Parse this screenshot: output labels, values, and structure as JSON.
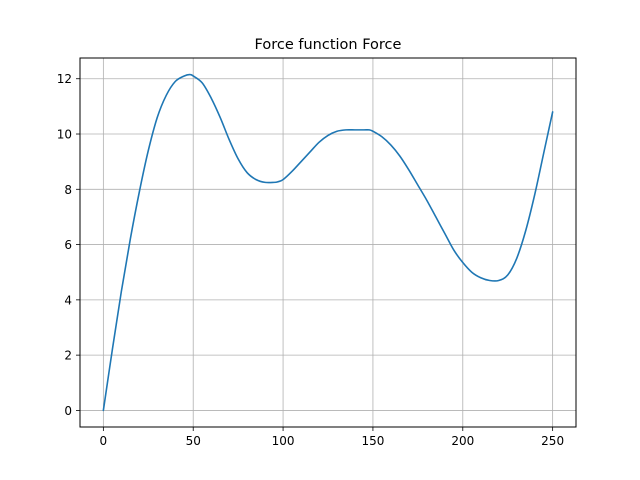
{
  "chart_data": {
    "type": "line",
    "title": "Force function Force",
    "xlabel": "",
    "ylabel": "",
    "xlim": [
      -13,
      263
    ],
    "ylim": [
      -0.6,
      12.75
    ],
    "grid": true,
    "x_ticks": [
      0,
      50,
      100,
      150,
      200,
      250
    ],
    "y_ticks": [
      0,
      2,
      4,
      6,
      8,
      10,
      12
    ],
    "x_tick_labels": [
      "0",
      "50",
      "100",
      "150",
      "200",
      "250"
    ],
    "y_tick_labels": [
      "0",
      "2",
      "4",
      "6",
      "8",
      "10",
      "12"
    ],
    "series": [
      {
        "color": "#1f77b4",
        "x": [
          0,
          5,
          10,
          15,
          20,
          25,
          30,
          35,
          40,
          45,
          48,
          50,
          55,
          60,
          65,
          70,
          75,
          80,
          85,
          90,
          95,
          97,
          100,
          105,
          110,
          115,
          120,
          125,
          130,
          135,
          140,
          145,
          148,
          150,
          155,
          160,
          165,
          170,
          175,
          180,
          185,
          190,
          195,
          200,
          205,
          210,
          215,
          220,
          225,
          230,
          235,
          240,
          245,
          250
        ],
        "y": [
          0,
          2.2,
          4.3,
          6.2,
          7.9,
          9.4,
          10.6,
          11.4,
          11.9,
          12.1,
          12.15,
          12.1,
          11.85,
          11.3,
          10.6,
          9.8,
          9.1,
          8.6,
          8.35,
          8.25,
          8.25,
          8.27,
          8.35,
          8.65,
          9.0,
          9.35,
          9.7,
          9.95,
          10.1,
          10.15,
          10.15,
          10.15,
          10.15,
          10.1,
          9.9,
          9.6,
          9.2,
          8.7,
          8.15,
          7.6,
          7.0,
          6.4,
          5.8,
          5.35,
          5.0,
          4.8,
          4.7,
          4.7,
          4.9,
          5.5,
          6.5,
          7.8,
          9.3,
          10.8
        ]
      }
    ]
  }
}
